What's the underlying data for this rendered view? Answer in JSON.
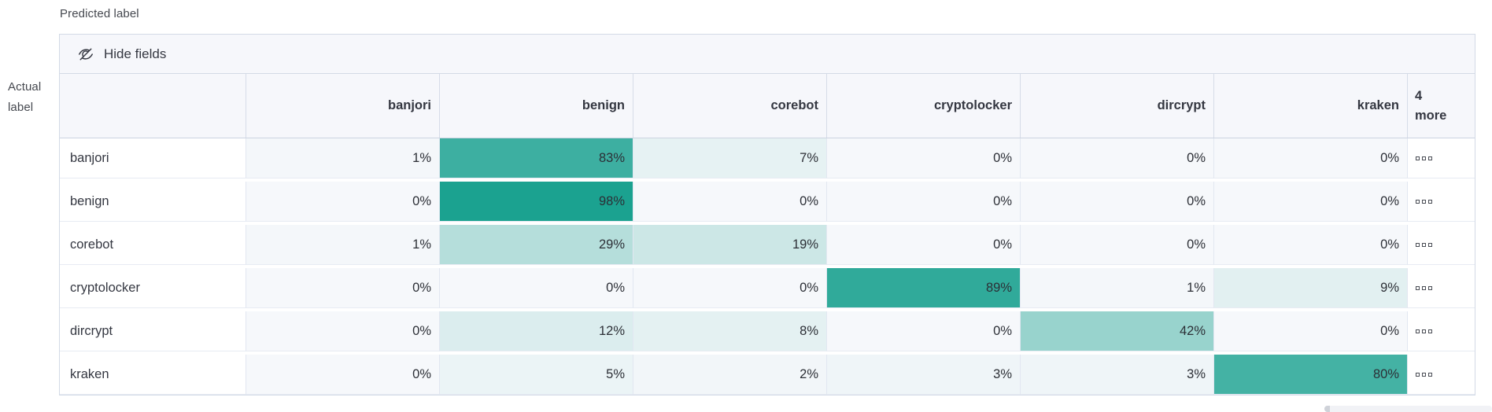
{
  "toolbar": {
    "hide_fields_label": "Hide fields"
  },
  "chart_data": {
    "type": "heatmap",
    "x_axis_label": "Predicted label",
    "y_axis_label": "Actual label",
    "columns": [
      "banjori",
      "benign",
      "corebot",
      "cryptolocker",
      "dircrypt",
      "kraken"
    ],
    "more_columns_badge": {
      "count": "4",
      "label": "more"
    },
    "rows": [
      "banjori",
      "benign",
      "corebot",
      "cryptolocker",
      "dircrypt",
      "kraken"
    ],
    "values_percent": [
      [
        1,
        83,
        7,
        0,
        0,
        0
      ],
      [
        0,
        98,
        0,
        0,
        0,
        0
      ],
      [
        1,
        29,
        19,
        0,
        0,
        0
      ],
      [
        0,
        0,
        0,
        89,
        1,
        9
      ],
      [
        0,
        12,
        8,
        0,
        42,
        0
      ],
      [
        0,
        5,
        2,
        3,
        3,
        80
      ]
    ],
    "value_suffix": "%",
    "heat_scale": {
      "zero_color": "#F6F8FB",
      "hundred_color": "#17A08E"
    },
    "legend_position": "none",
    "grid_lines": "light cell borders"
  }
}
